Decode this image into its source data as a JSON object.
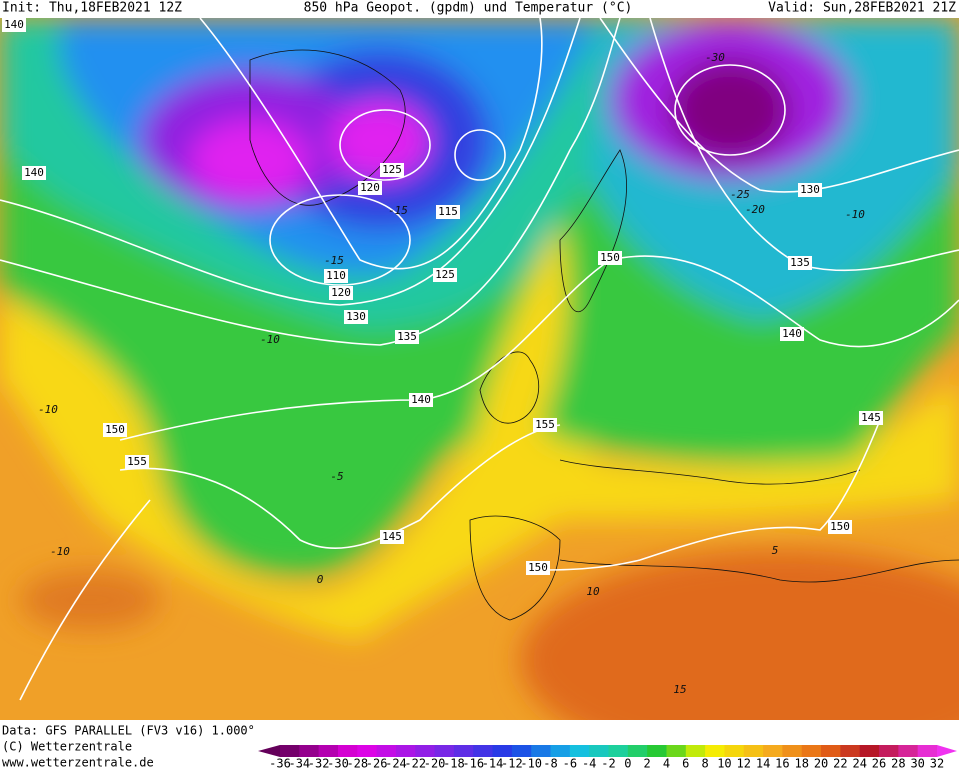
{
  "header": {
    "init": "Init: Thu,18FEB2021 12Z",
    "title": "850 hPa Geopot. (gpdm) und Temperatur (°C)",
    "valid": "Valid: Sun,28FEB2021 21Z"
  },
  "footer": {
    "source": "Data: GFS PARALLEL (FV3 v16) 1.000°",
    "copyright": "(C) Wetterzentrale",
    "url": "www.wetterzentrale.de"
  },
  "color_scale": {
    "labels": [
      -36,
      -34,
      -32,
      -30,
      -28,
      -26,
      -24,
      -22,
      -20,
      -18,
      -16,
      -14,
      -12,
      -10,
      -8,
      -6,
      -4,
      -2,
      0,
      2,
      4,
      6,
      8,
      10,
      12,
      14,
      16,
      18,
      20,
      22,
      24,
      26,
      28,
      30,
      32
    ]
  },
  "geopotential_labels": [
    140,
    140,
    125,
    120,
    115,
    125,
    110,
    120,
    130,
    135,
    140,
    150,
    155,
    145,
    155,
    150,
    150,
    130,
    135,
    140,
    145,
    150
  ],
  "temperature_labels": [
    -15,
    -15,
    -10,
    -5,
    0,
    5,
    10,
    -10,
    -10,
    -30,
    -25,
    -20,
    -10,
    15
  ]
}
